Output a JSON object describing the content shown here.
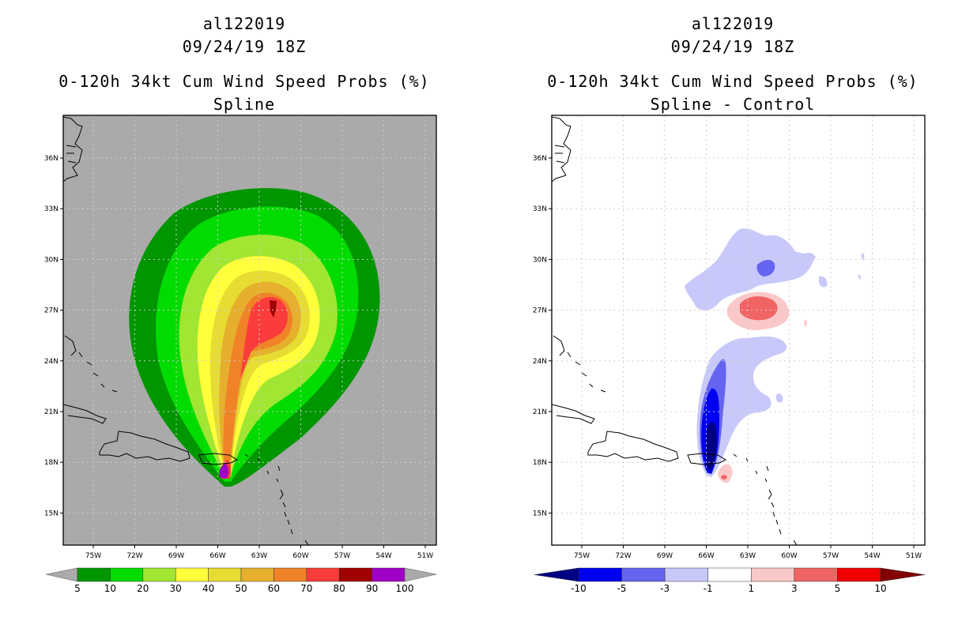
{
  "panels": [
    {
      "storm_id": "al122019",
      "datetime": "09/24/19 18Z",
      "title": "0-120h 34kt Cum Wind Speed Probs (%)",
      "subtitle": "Spline",
      "background": "#aaaaaa",
      "chart_data": {
        "type": "contour-map",
        "variable": "0-120h cumulative 34kt wind speed probability (%)",
        "x_ticks": [
          "75W",
          "72W",
          "69W",
          "66W",
          "63W",
          "60W",
          "57W",
          "54W",
          "51W"
        ],
        "y_ticks": [
          "36N",
          "33N",
          "30N",
          "27N",
          "24N",
          "21N",
          "18N",
          "15N"
        ],
        "xlim_lon": [
          -78,
          -50.3
        ],
        "ylim_lat": [
          13.2,
          38.5
        ],
        "colorbar": {
          "labels": [
            "5",
            "10",
            "20",
            "30",
            "40",
            "50",
            "60",
            "70",
            "80",
            "90",
            "100"
          ],
          "colors": [
            "#009600",
            "#00dc00",
            "#a0e632",
            "#ffff3c",
            "#e6dc32",
            "#e6af2d",
            "#f08228",
            "#fa3c3c",
            "#a00000",
            "#a000c8"
          ]
        },
        "max_probability_center": {
          "lon": -61.8,
          "lat": 26.8
        },
        "origin": {
          "lon": -65.7,
          "lat": 17.3
        }
      }
    },
    {
      "storm_id": "al122019",
      "datetime": "09/24/19 18Z",
      "title": "0-120h 34kt Cum Wind Speed Probs (%)",
      "subtitle": "Spline - Control",
      "background": "#ffffff",
      "chart_data": {
        "type": "contour-map-difference",
        "variable": "Spline minus Control probability difference (%)",
        "x_ticks": [
          "75W",
          "72W",
          "69W",
          "66W",
          "63W",
          "60W",
          "57W",
          "54W",
          "51W"
        ],
        "y_ticks": [
          "36N",
          "33N",
          "30N",
          "27N",
          "24N",
          "21N",
          "18N",
          "15N"
        ],
        "xlim_lon": [
          -78,
          -50.3
        ],
        "ylim_lat": [
          13.2,
          38.5
        ],
        "colorbar": {
          "labels": [
            "-10",
            "-5",
            "-3",
            "-1",
            "1",
            "3",
            "5",
            "10"
          ],
          "colors": [
            "#000082",
            "#0000f0",
            "#6464f0",
            "#c8c8fa",
            "#ffffff",
            "#fac8c8",
            "#f06464",
            "#f00000",
            "#820000"
          ]
        },
        "min_difference_center": {
          "lon": -65.9,
          "lat": 18.5
        },
        "max_difference_center": {
          "lon": -61.5,
          "lat": 27.2
        }
      }
    }
  ]
}
